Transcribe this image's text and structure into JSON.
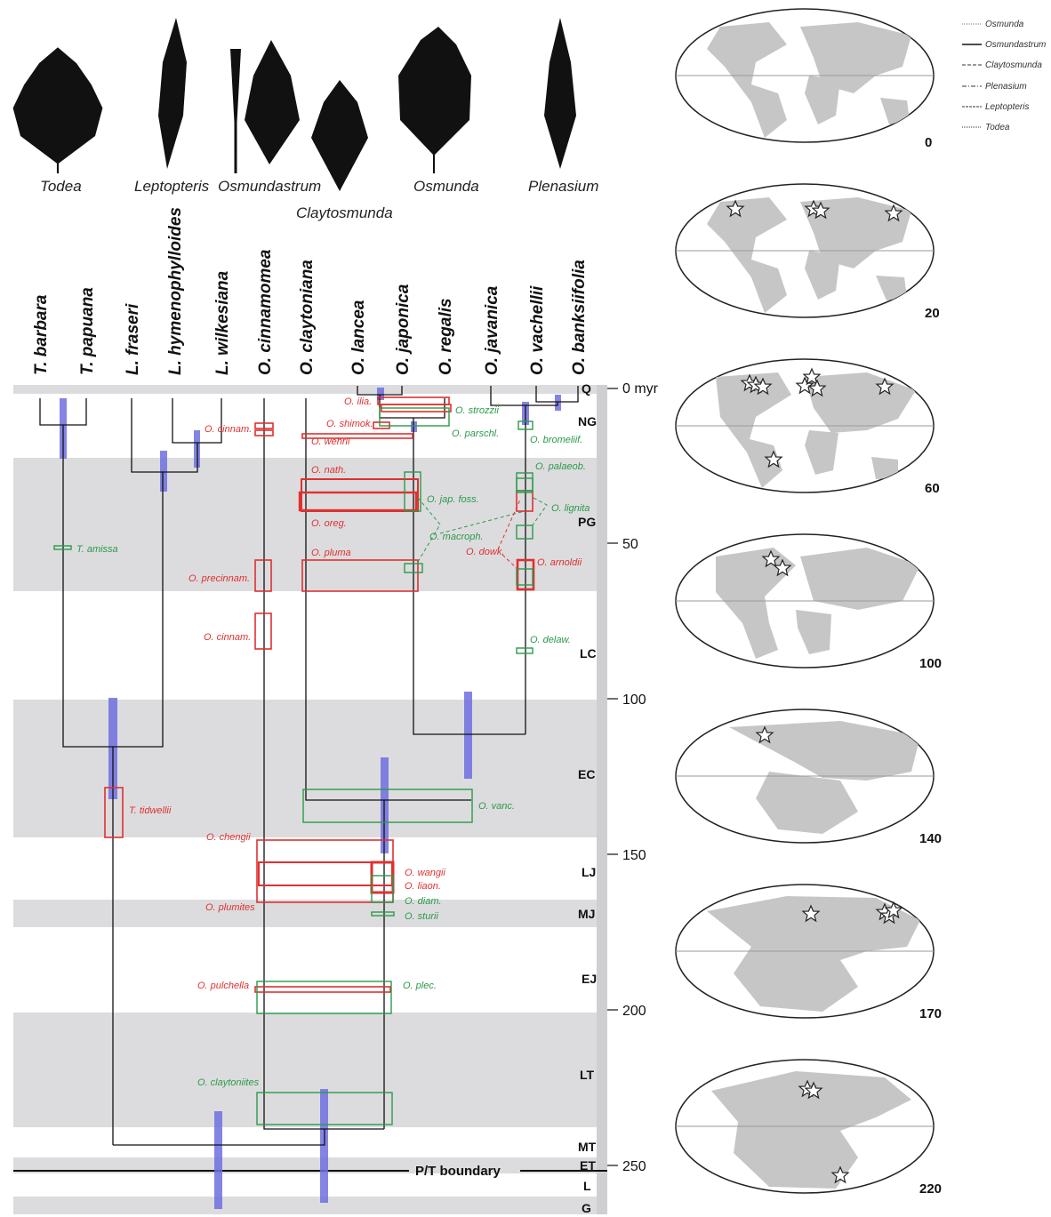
{
  "genera": [
    "Todea",
    "Leptopteris",
    "Osmundastrum",
    "Claytosmunda",
    "Osmunda",
    "Plenasium"
  ],
  "species": [
    "T. barbara",
    "T. papuana",
    "L. fraseri",
    "L. hymenophylloides",
    "L. wilkesiana",
    "O. cinnamomea",
    "O. claytoniana",
    "O. lancea",
    "O. japonica",
    "O. regalis",
    "O. javanica",
    "O. vachellii",
    "O. banksiifolia"
  ],
  "periods": [
    "Q",
    "NG",
    "PG",
    "LC",
    "EC",
    "LJ",
    "MJ",
    "EJ",
    "LT",
    "MT",
    "ET",
    "L",
    "G"
  ],
  "axis_labels": [
    "0 myr",
    "50",
    "100",
    "150",
    "200",
    "250"
  ],
  "boundary_label": "P/T boundary",
  "fossils_red": [
    "O. ilia.",
    "O. shimok.",
    "O. cinnam.",
    "O. wehrii",
    "O. nath.",
    "O. oreg.",
    "O. pluma",
    "O. precinnam.",
    "O. cinnam.",
    "O. dowk.",
    "O. arnoldii",
    "T. tidwellii",
    "O. chengii",
    "O. wangii",
    "O. liaon.",
    "O. plumites",
    "O. pulchella"
  ],
  "fossils_green": [
    "O. strozzii",
    "O. parschl.",
    "O. bromeliif.",
    "O. palaeob.",
    "O. jap. foss.",
    "O. lignita",
    "O. macroph.",
    "T. amissa",
    "O. delaw.",
    "O. vanc.",
    "O. diam.",
    "O. sturii",
    "O. plec.",
    "O. claytoniites"
  ],
  "legend": [
    "Osmunda",
    "Osmundastrum",
    "Claytosmunda",
    "Plenasium",
    "Leptopteris",
    "Todea"
  ],
  "map_ages": [
    "0",
    "20",
    "60",
    "100",
    "140",
    "170",
    "220"
  ],
  "colors": {
    "fossil_red": "#e03030",
    "fossil_green": "#2a9a4a",
    "bar_blue": "#6f6fe0",
    "band_grey": "#dcdcde",
    "land": "#c6c6c6"
  }
}
